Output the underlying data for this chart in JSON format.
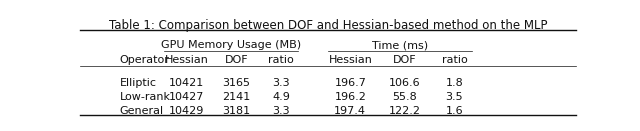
{
  "title": "Table 1: Comparison between DOF and Hessian-based method on the MLP",
  "col_headers": [
    "Operator",
    "Hessian",
    "DOF",
    "ratio",
    "Hessian",
    "DOF",
    "ratio"
  ],
  "rows": [
    [
      "Elliptic",
      "10421",
      "3165",
      "3.3",
      "196.7",
      "106.6",
      "1.8"
    ],
    [
      "Low-rank",
      "10427",
      "2141",
      "4.9",
      "196.2",
      "55.8",
      "3.5"
    ],
    [
      "General",
      "10429",
      "3181",
      "3.3",
      "197.4",
      "122.2",
      "1.6"
    ]
  ],
  "col_align": [
    "left",
    "center",
    "center",
    "center",
    "center",
    "center",
    "center"
  ],
  "text_color": "#111111",
  "title_fontsize": 8.5,
  "header_fontsize": 8.0,
  "body_fontsize": 8.0
}
